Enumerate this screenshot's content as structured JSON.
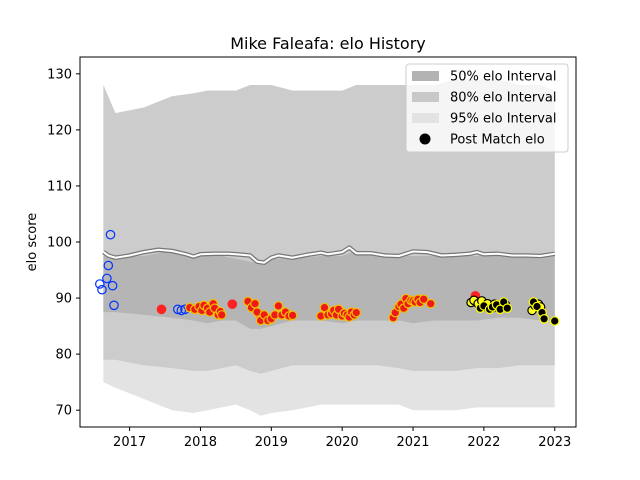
{
  "chart_data": {
    "type": "scatter",
    "title": "Mike Faleafa: elo History",
    "xlabel": "",
    "ylabel": "elo score",
    "xlim": [
      2016.3,
      2023.3
    ],
    "ylim": [
      67,
      133
    ],
    "xticks": [
      2017,
      2018,
      2019,
      2020,
      2021,
      2022,
      2023
    ],
    "xtick_labels": [
      "2017",
      "2018",
      "2019",
      "2020",
      "2021",
      "2022",
      "2023"
    ],
    "yticks": [
      70,
      80,
      90,
      100,
      110,
      120,
      130
    ],
    "ytick_labels": [
      "70",
      "80",
      "90",
      "100",
      "110",
      "120",
      "130"
    ],
    "grid": false,
    "legend_position": "top-right",
    "legend": [
      {
        "label": "50% elo Interval",
        "kind": "band",
        "color": "#b3b3b3"
      },
      {
        "label": "80% elo Interval",
        "kind": "band",
        "color": "#c8c8c8"
      },
      {
        "label": "95% elo Interval",
        "kind": "band",
        "color": "#e3e3e3"
      },
      {
        "label": "Post Match elo",
        "kind": "marker",
        "color": "#000000"
      }
    ],
    "bands": {
      "x": [
        2016.63,
        2016.8,
        2017.2,
        2017.6,
        2017.9,
        2018.1,
        2018.3,
        2018.5,
        2018.7,
        2018.85,
        2019.0,
        2019.3,
        2019.7,
        2020.0,
        2020.2,
        2020.5,
        2020.8,
        2021.0,
        2021.3,
        2021.6,
        2021.9,
        2022.2,
        2022.5,
        2022.8,
        2023.0
      ],
      "band95": {
        "lower": [
          75,
          74,
          72,
          70,
          69.5,
          70,
          70.5,
          71,
          70,
          69,
          69.5,
          70,
          71,
          71,
          71,
          71,
          71,
          70,
          70,
          70,
          70.5,
          70.5,
          70.5,
          70.5,
          70.5
        ],
        "upper": [
          128,
          123,
          124,
          126,
          126.5,
          127,
          127,
          127,
          128,
          128,
          128,
          127,
          127,
          127,
          128,
          128,
          128,
          128,
          128,
          129,
          129,
          129,
          128,
          128,
          127
        ]
      },
      "band80": {
        "lower": [
          79,
          79,
          78,
          77.5,
          77,
          77,
          77.5,
          78,
          77,
          76.5,
          77,
          78,
          78,
          78,
          78,
          78,
          77.5,
          77,
          77,
          77,
          77.5,
          77.5,
          78,
          78,
          78
        ]
      },
      "band50": {
        "lower": [
          87.5,
          87.5,
          87,
          86.5,
          86,
          85.5,
          86,
          86,
          84.5,
          84.5,
          85,
          86,
          86,
          85.5,
          86,
          86,
          86,
          85.5,
          86,
          86,
          86,
          86.5,
          86.5,
          86,
          86
        ],
        "upper": [
          97.5,
          97.5,
          97.5,
          98.5,
          97.5,
          97.5,
          97.5,
          97,
          96.5,
          96,
          97,
          97,
          97.5,
          97.5,
          98.5,
          97.5,
          97.5,
          97.5,
          97.5,
          97.5,
          97.5,
          97.5,
          97.5,
          97,
          97.5
        ]
      }
    },
    "mean_line": {
      "x": [
        2016.63,
        2016.7,
        2016.8,
        2017.0,
        2017.2,
        2017.4,
        2017.6,
        2017.8,
        2017.9,
        2018.0,
        2018.2,
        2018.4,
        2018.5,
        2018.7,
        2018.8,
        2018.9,
        2019.0,
        2019.1,
        2019.3,
        2019.5,
        2019.7,
        2019.8,
        2020.0,
        2020.1,
        2020.2,
        2020.4,
        2020.6,
        2020.8,
        2021.0,
        2021.2,
        2021.4,
        2021.6,
        2021.8,
        2021.9,
        2022.0,
        2022.2,
        2022.4,
        2022.6,
        2022.8,
        2023.0
      ],
      "y": [
        98.2,
        97.6,
        97.2,
        97.6,
        98.2,
        98.6,
        98.4,
        97.8,
        97.4,
        97.8,
        97.9,
        97.9,
        97.8,
        97.6,
        96.5,
        96.3,
        97.2,
        97.6,
        97.2,
        97.7,
        98.1,
        97.8,
        98.2,
        99.0,
        98.0,
        98.0,
        97.6,
        97.5,
        98.3,
        98.2,
        97.6,
        97.7,
        97.9,
        98.2,
        97.8,
        97.9,
        97.6,
        97.6,
        97.5,
        97.9
      ]
    },
    "series": [
      {
        "color_fill": "none",
        "color_edge": "#0033ff",
        "x": [
          2016.58,
          2016.61,
          2016.68,
          2016.7,
          2016.73,
          2016.76,
          2016.78,
          2017.68,
          2017.73,
          2017.78
        ],
        "y": [
          92.5,
          91.5,
          93.5,
          95.8,
          101.3,
          92.2,
          88.7,
          88.0,
          87.8,
          88.0
        ]
      },
      {
        "color_fill": "#ff2222",
        "color_edge": "#ff2222",
        "x": [
          2017.45,
          2018.45,
          2018.85,
          2021.88
        ],
        "y": [
          88.0,
          88.9,
          87.0,
          90.4
        ]
      },
      {
        "color_fill": "#ee1a1a",
        "color_edge": "#f0c000",
        "x": [
          2017.85,
          2017.92,
          2017.98,
          2018.02,
          2018.05,
          2018.1,
          2018.13,
          2018.18,
          2018.2,
          2018.25,
          2018.28,
          2018.3,
          2018.67,
          2018.72,
          2018.77,
          2018.8,
          2018.85,
          2018.9,
          2018.95,
          2019.0,
          2019.05,
          2019.1,
          2019.15,
          2019.2,
          2019.25,
          2019.3,
          2019.7,
          2019.75,
          2019.8,
          2019.85,
          2019.88,
          2019.92,
          2019.95,
          2020.0,
          2020.03,
          2020.07,
          2020.1,
          2020.13,
          2020.17,
          2020.2,
          2020.72,
          2020.75,
          2020.8,
          2020.83,
          2020.87,
          2020.9,
          2020.93,
          2020.97,
          2021.0,
          2021.03,
          2021.07,
          2021.1,
          2021.15,
          2021.25
        ],
        "y": [
          88.3,
          88.0,
          88.5,
          87.8,
          88.7,
          88.2,
          87.5,
          89.0,
          88.2,
          87.0,
          87.6,
          87.0,
          89.4,
          88.3,
          89.0,
          87.5,
          86.0,
          87.0,
          86.0,
          86.3,
          87.0,
          88.6,
          87.0,
          87.5,
          86.8,
          86.9,
          86.8,
          88.3,
          87.0,
          87.2,
          87.8,
          87.0,
          88.0,
          86.8,
          87.3,
          87.0,
          86.6,
          87.5,
          87.0,
          87.4,
          86.5,
          87.4,
          88.5,
          88.9,
          88.2,
          89.9,
          89.0,
          89.6,
          89.5,
          89.3,
          89.8,
          89.2,
          89.8,
          89.0
        ]
      },
      {
        "color_fill": "#ffff22",
        "color_edge": "#000000",
        "x": [
          2021.82,
          2021.86,
          2021.92,
          2021.97,
          2022.02,
          2022.05,
          2022.1,
          2022.15,
          2022.2,
          2022.25,
          2022.3,
          2022.68,
          2022.72,
          2022.77,
          2022.8
        ],
        "y": [
          89.2,
          89.6,
          89.0,
          89.5,
          88.5,
          89.0,
          88.2,
          88.9,
          88.3,
          88.8,
          88.9,
          87.8,
          88.7,
          88.9,
          88.4
        ]
      },
      {
        "color_fill": "#000000",
        "color_edge": "#ffff00",
        "x": [
          2021.95,
          2022.0,
          2022.08,
          2022.12,
          2022.18,
          2022.23,
          2022.28,
          2022.33,
          2022.7,
          2022.75,
          2022.82,
          2022.85,
          2023.0
        ],
        "y": [
          88.2,
          88.6,
          88.0,
          88.4,
          88.8,
          88.0,
          89.3,
          88.2,
          89.3,
          88.5,
          87.4,
          86.3,
          85.9
        ]
      }
    ]
  }
}
